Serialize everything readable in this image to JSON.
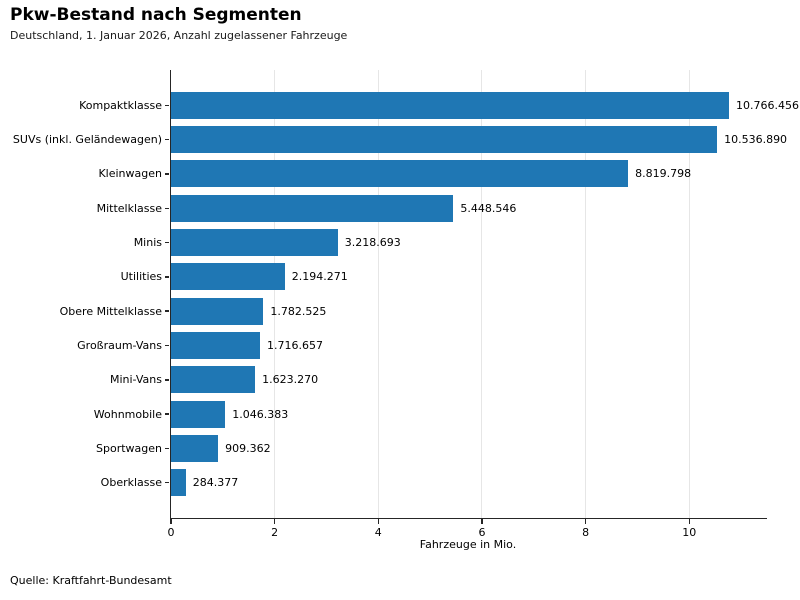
{
  "chart_data": {
    "type": "bar",
    "orientation": "horizontal",
    "title": "Pkw-Bestand nach Segmenten",
    "subtitle": "Deutschland, 1. Januar 2026, Anzahl zugelassener Fahrzeuge",
    "categories": [
      "Kompaktklasse",
      "SUVs (inkl. Geländewagen)",
      "Kleinwagen",
      "Mittelklasse",
      "Minis",
      "Utilities",
      "Obere Mittelklasse",
      "Großraum-Vans",
      "Mini-Vans",
      "Wohnmobile",
      "Sportwagen",
      "Oberklasse"
    ],
    "values": [
      10766456,
      10536890,
      8819798,
      5448546,
      3218693,
      2194271,
      1782525,
      1716657,
      1623270,
      1046383,
      909362,
      284377
    ],
    "value_labels": [
      "10.766.456",
      "10.536.890",
      "8.819.798",
      "5.448.546",
      "3.218.693",
      "2.194.271",
      "1.782.525",
      "1.716.657",
      "1.623.270",
      "1.046.383",
      "909.362",
      "284.377"
    ],
    "xlabel": "Fahrzeuge in Mio.",
    "xticks": [
      0,
      2,
      4,
      6,
      8,
      10
    ],
    "xlim": [
      0,
      11.5
    ],
    "x_unit_divisor": 1000000,
    "grid": "vertical",
    "legend": "none",
    "bar_color": "#1f77b4",
    "spine_color": "#262626",
    "gridline_color": "#e6e6e6",
    "source": "Quelle: Kraftfahrt-Bundesamt"
  }
}
